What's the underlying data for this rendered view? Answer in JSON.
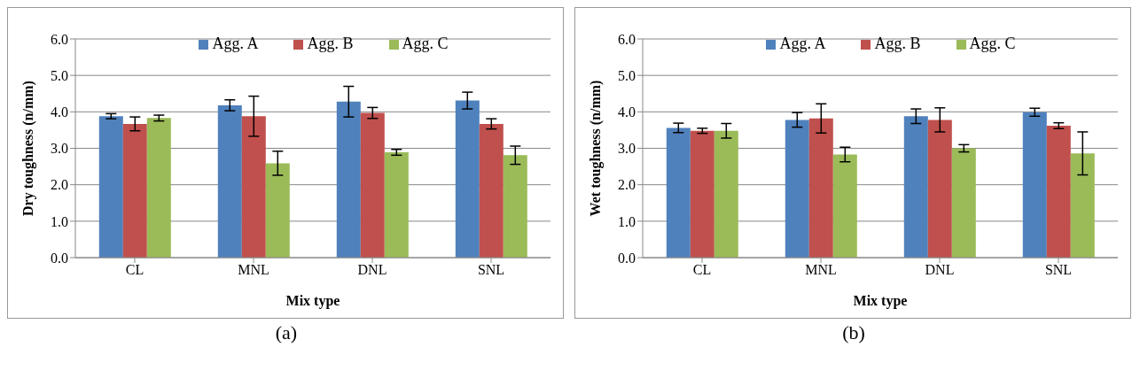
{
  "chart_data": [
    {
      "type": "bar",
      "xlabel": "Mix type",
      "ylabel": "Dry toughness  (n/mm)",
      "categories": [
        "CL",
        "MNL",
        "DNL",
        "SNL"
      ],
      "series": [
        {
          "name": "Agg. A",
          "color": "#4f81bd",
          "values": [
            3.88,
            4.18,
            4.28,
            4.31
          ],
          "errors": [
            0.07,
            0.15,
            0.42,
            0.23
          ]
        },
        {
          "name": "Agg. B",
          "color": "#c0504d",
          "values": [
            3.67,
            3.88,
            3.97,
            3.67
          ],
          "errors": [
            0.19,
            0.55,
            0.15,
            0.14
          ]
        },
        {
          "name": "Agg. C",
          "color": "#9bbb59",
          "values": [
            3.83,
            2.59,
            2.89,
            2.81
          ],
          "errors": [
            0.08,
            0.33,
            0.08,
            0.25
          ]
        }
      ],
      "ylim": [
        0,
        6
      ],
      "yticks": [
        {
          "value": 0,
          "label": "0.0"
        },
        {
          "value": 1,
          "label": "1.0"
        },
        {
          "value": 2,
          "label": "2.0"
        },
        {
          "value": 3,
          "label": "3.0"
        },
        {
          "value": 4,
          "label": "4.0"
        },
        {
          "value": 5,
          "label": "5.0"
        },
        {
          "value": 6,
          "label": "6.0"
        }
      ],
      "grid": "y",
      "legend": "top",
      "annotations": [
        "(a)"
      ]
    },
    {
      "type": "bar",
      "xlabel": "Mix  type",
      "ylabel": "Wet toughness (n/mm)",
      "categories": [
        "CL",
        "MNL",
        "DNL",
        "SNL"
      ],
      "series": [
        {
          "name": "Agg. A",
          "color": "#4f81bd",
          "values": [
            3.56,
            3.78,
            3.88,
            3.99
          ],
          "errors": [
            0.13,
            0.2,
            0.2,
            0.11
          ]
        },
        {
          "name": "Agg. B",
          "color": "#c0504d",
          "values": [
            3.48,
            3.82,
            3.78,
            3.62
          ],
          "errors": [
            0.07,
            0.4,
            0.33,
            0.08
          ]
        },
        {
          "name": "Agg. C",
          "color": "#9bbb59",
          "values": [
            3.48,
            2.83,
            3.0,
            2.86
          ],
          "errors": [
            0.2,
            0.2,
            0.1,
            0.59
          ]
        }
      ],
      "ylim": [
        0,
        6
      ],
      "yticks": [
        {
          "value": 0,
          "label": "0.0"
        },
        {
          "value": 1,
          "label": "1.0"
        },
        {
          "value": 2,
          "label": "2.0"
        },
        {
          "value": 3,
          "label": "3.0"
        },
        {
          "value": 4,
          "label": "4.0"
        },
        {
          "value": 5,
          "label": "5.0"
        },
        {
          "value": 6,
          "label": "6.0"
        }
      ],
      "grid": "y",
      "legend": "top",
      "annotations": [
        "(b)"
      ]
    }
  ]
}
